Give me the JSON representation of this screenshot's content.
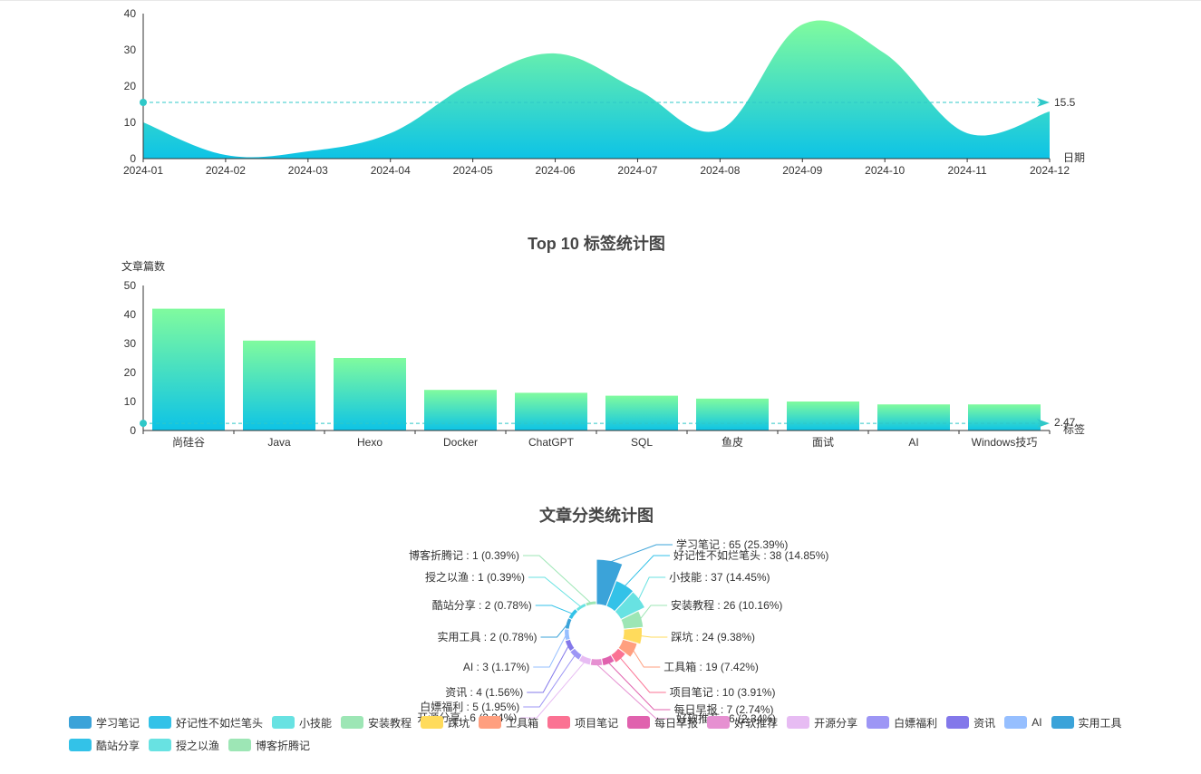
{
  "chart_data": [
    {
      "type": "area",
      "title": "",
      "xlabel": "日期",
      "ylabel": "",
      "x": [
        "2024-01",
        "2024-02",
        "2024-03",
        "2024-04",
        "2024-05",
        "2024-06",
        "2024-07",
        "2024-08",
        "2024-09",
        "2024-10",
        "2024-11",
        "2024-12"
      ],
      "values": [
        10,
        1,
        2,
        7,
        21,
        29,
        19,
        8,
        37,
        29,
        7,
        13
      ],
      "ylim": [
        0,
        40
      ],
      "yticks": [
        "0",
        "10",
        "20",
        "30",
        "40"
      ],
      "average": 15.5,
      "average_label": "15.5",
      "gradient": [
        "#80fb9e",
        "#0dc3e6"
      ],
      "grid": false
    },
    {
      "type": "bar",
      "title": "Top 10 标签统计图",
      "xlabel": "标签",
      "ylabel": "文章篇数",
      "categories": [
        "尚硅谷",
        "Java",
        "Hexo",
        "Docker",
        "ChatGPT",
        "SQL",
        "鱼皮",
        "面试",
        "AI",
        "Windows技巧"
      ],
      "values": [
        42,
        31,
        25,
        14,
        13,
        12,
        11,
        10,
        9,
        9
      ],
      "ylim": [
        0,
        50
      ],
      "yticks": [
        "0",
        "10",
        "20",
        "30",
        "40",
        "50"
      ],
      "average": 2.47,
      "average_label": "2.47",
      "gradient": [
        "#80fb9e",
        "#0dc3e6"
      ],
      "grid": false
    },
    {
      "type": "pie",
      "title": "文章分类统计图",
      "rose": true,
      "legend_position": "bottom",
      "slices": [
        {
          "name": "学习笔记",
          "value": 65,
          "label": "学习笔记 : 65 (25.39%)",
          "color": "#3ba3d9"
        },
        {
          "name": "好记性不如烂笔头",
          "value": 38,
          "label": "好记性不如烂笔头 : 38 (14.85%)",
          "color": "#33c2e8"
        },
        {
          "name": "小技能",
          "value": 37,
          "label": "小技能 : 37 (14.45%)",
          "color": "#68e2e2"
        },
        {
          "name": "安装教程",
          "value": 26,
          "label": "安装教程 : 26 (10.16%)",
          "color": "#9de6b5"
        },
        {
          "name": "踩坑",
          "value": 24,
          "label": "踩坑 : 24 (9.38%)",
          "color": "#ffdb5c"
        },
        {
          "name": "工具箱",
          "value": 19,
          "label": "工具箱 : 19 (7.42%)",
          "color": "#ff9f7f"
        },
        {
          "name": "项目笔记",
          "value": 10,
          "label": "项目笔记 : 10 (3.91%)",
          "color": "#fb7293"
        },
        {
          "name": "每日早报",
          "value": 7,
          "label": "每日早报 : 7 (2.74%)",
          "color": "#e062ae"
        },
        {
          "name": "好软推荐",
          "value": 6,
          "label": "好软推荐 : 6 (2.34%)",
          "color": "#e690d1"
        },
        {
          "name": "开源分享",
          "value": 6,
          "label": "开源分享 : 6 (2.34%)",
          "color": "#e7bcf3"
        },
        {
          "name": "白嫖福利",
          "value": 5,
          "label": "白嫖福利 : 5 (1.95%)",
          "color": "#9d96f5"
        },
        {
          "name": "资讯",
          "value": 4,
          "label": "资讯 : 4 (1.56%)",
          "color": "#8378ea"
        },
        {
          "name": "AI",
          "value": 3,
          "label": "AI : 3 (1.17%)",
          "color": "#96bfff"
        },
        {
          "name": "实用工具",
          "value": 2,
          "label": "实用工具 : 2 (0.78%)",
          "color": "#3ba3d9"
        },
        {
          "name": "酷站分享",
          "value": 2,
          "label": "酷站分享 : 2 (0.78%)",
          "color": "#33c2e8"
        },
        {
          "name": "授之以渔",
          "value": 1,
          "label": "授之以渔 : 1 (0.39%)",
          "color": "#68e2e2"
        },
        {
          "name": "博客折腾记",
          "value": 1,
          "label": "博客折腾记 : 1 (0.39%)",
          "color": "#9de6b5"
        }
      ]
    }
  ]
}
